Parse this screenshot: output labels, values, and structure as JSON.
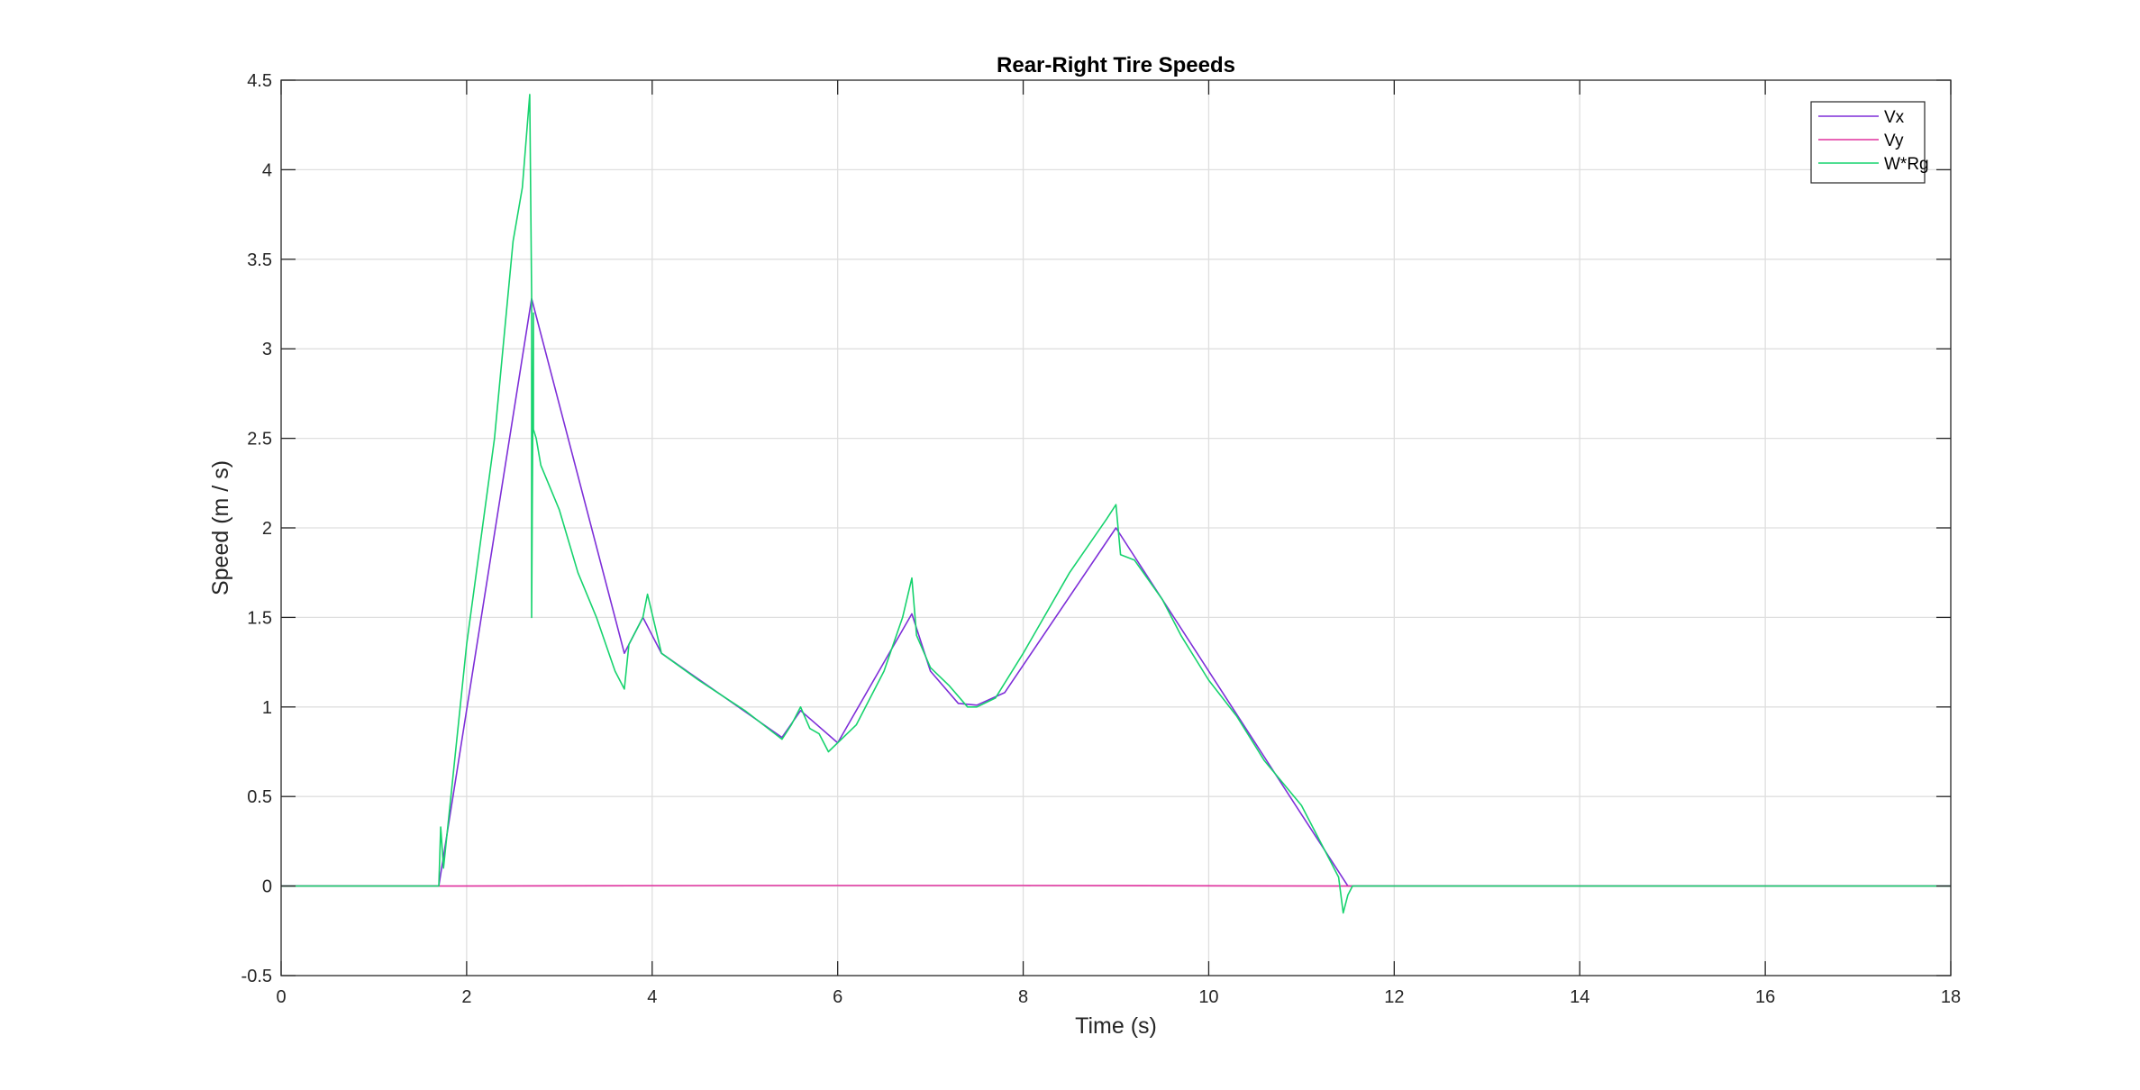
{
  "chart_data": {
    "type": "line",
    "title": "Rear-Right Tire Speeds",
    "xlabel": "Time (s)",
    "ylabel": "Speed (m / s)",
    "xlim": [
      0,
      18
    ],
    "ylim": [
      -0.5,
      4.5
    ],
    "xticks": [
      0,
      2,
      4,
      6,
      8,
      10,
      12,
      14,
      16,
      18
    ],
    "xtick_labels": [
      "0",
      "2",
      "4",
      "6",
      "8",
      "10",
      "12",
      "14",
      "16",
      "18"
    ],
    "yticks": [
      -0.5,
      0,
      0.5,
      1,
      1.5,
      2,
      2.5,
      3,
      3.5,
      4,
      4.5
    ],
    "ytick_labels": [
      "-0.5",
      "0",
      "0.5",
      "1",
      "1.5",
      "2",
      "2.5",
      "3",
      "3.5",
      "4",
      "4.5"
    ],
    "grid": true,
    "legend_position": "top-right",
    "series": [
      {
        "name": "Vx",
        "color": "#7e2fd8",
        "x": [
          0,
          1.7,
          2.7,
          3.7,
          3.9,
          4.1,
          5.4,
          5.6,
          6.0,
          6.8,
          7.0,
          7.3,
          7.5,
          7.8,
          9.0,
          11.5,
          18
        ],
        "y": [
          0,
          0,
          3.28,
          1.3,
          1.5,
          1.3,
          0.83,
          0.98,
          0.8,
          1.52,
          1.2,
          1.02,
          1.01,
          1.08,
          2.0,
          0,
          0
        ]
      },
      {
        "name": "Vy",
        "color": "#e0309e",
        "x": [
          0,
          1.7,
          5,
          8,
          11.5,
          18
        ],
        "y": [
          0,
          0,
          0.003,
          0.003,
          0,
          0
        ]
      },
      {
        "name": "W*Rg",
        "color": "#17d36e",
        "x": [
          0,
          1.7,
          1.72,
          1.75,
          2.0,
          2.3,
          2.5,
          2.6,
          2.68,
          2.7,
          2.7,
          2.72,
          2.72,
          2.75,
          2.8,
          3.0,
          3.2,
          3.4,
          3.6,
          3.7,
          3.75,
          3.9,
          3.95,
          4.1,
          4.5,
          5.0,
          5.4,
          5.5,
          5.6,
          5.7,
          5.8,
          5.9,
          6.0,
          6.2,
          6.5,
          6.7,
          6.8,
          6.85,
          7.0,
          7.2,
          7.4,
          7.5,
          7.7,
          8.0,
          8.5,
          8.9,
          9.0,
          9.05,
          9.2,
          9.5,
          9.7,
          10.0,
          10.3,
          10.6,
          11.0,
          11.3,
          11.4,
          11.45,
          11.5,
          11.55,
          12,
          18
        ],
        "y": [
          0,
          0,
          0.33,
          0.1,
          1.35,
          2.5,
          3.6,
          3.9,
          4.42,
          3.3,
          1.5,
          3.2,
          2.55,
          2.5,
          2.35,
          2.1,
          1.75,
          1.5,
          1.2,
          1.1,
          1.35,
          1.5,
          1.63,
          1.3,
          1.15,
          0.98,
          0.82,
          0.9,
          1.0,
          0.88,
          0.85,
          0.75,
          0.8,
          0.9,
          1.2,
          1.5,
          1.72,
          1.4,
          1.22,
          1.12,
          1.0,
          1.0,
          1.05,
          1.3,
          1.75,
          2.05,
          2.13,
          1.85,
          1.82,
          1.6,
          1.4,
          1.15,
          0.95,
          0.7,
          0.45,
          0.15,
          0.05,
          -0.15,
          -0.05,
          0,
          0,
          0
        ]
      }
    ]
  }
}
